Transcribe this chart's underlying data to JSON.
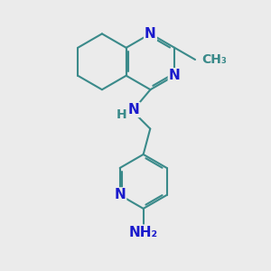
{
  "bg_color": "#ebebeb",
  "bond_color": "#3a8a8a",
  "atom_N_color": "#1a1acc",
  "atom_H_color": "#3a8a8a",
  "lw": 1.5,
  "fs": 11,
  "SH_T": [
    4.65,
    8.3
  ],
  "SH_B": [
    4.65,
    7.25
  ],
  "BL": 1.05,
  "methyl_text": "CH₃",
  "NH_text": "N",
  "H_text": "H",
  "NH2_text": "NH₂"
}
